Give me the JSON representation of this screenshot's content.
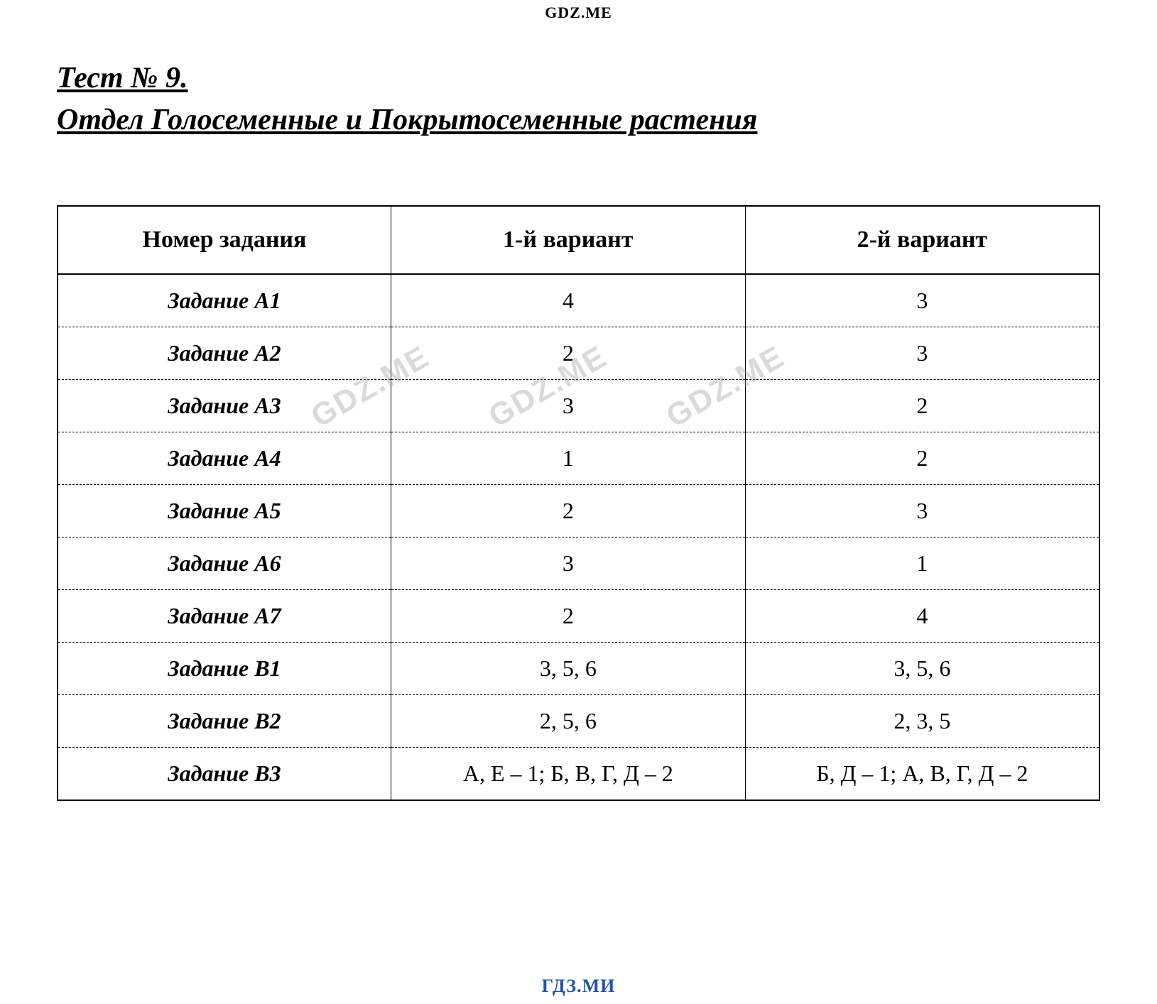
{
  "watermarks": {
    "top": "GDZ.ME",
    "bottom": "ГДЗ.МИ",
    "diagonal": "GDZ.ME"
  },
  "heading": {
    "line1": "Тест № 9.",
    "line2": "Отдел Голосеменные и Покрытосеменные растения"
  },
  "table": {
    "columns": [
      "Номер задания",
      "1-й вариант",
      "2-й вариант"
    ],
    "column_widths": [
      "32%",
      "34%",
      "34%"
    ],
    "header_fontsize": 34,
    "cell_fontsize": 32,
    "border_color": "#000000",
    "rows": [
      {
        "task": "Задание А1",
        "v1": "4",
        "v2": "3"
      },
      {
        "task": "Задание А2",
        "v1": "2",
        "v2": "3"
      },
      {
        "task": "Задание А3",
        "v1": "3",
        "v2": "2"
      },
      {
        "task": "Задание А4",
        "v1": "1",
        "v2": "2"
      },
      {
        "task": "Задание А5",
        "v1": "2",
        "v2": "3"
      },
      {
        "task": "Задание А6",
        "v1": "3",
        "v2": "1"
      },
      {
        "task": "Задание А7",
        "v1": "2",
        "v2": "4"
      },
      {
        "task": "Задание В1",
        "v1": "3, 5, 6",
        "v2": "3, 5, 6"
      },
      {
        "task": "Задание В2",
        "v1": "2, 5, 6",
        "v2": "2, 3, 5"
      },
      {
        "task": "Задание В3",
        "v1": "А, Е – 1; Б, В, Г, Д – 2",
        "v2": "Б, Д – 1; А, В, Г, Д – 2"
      }
    ]
  },
  "colors": {
    "background": "#ffffff",
    "text": "#000000",
    "bottom_watermark": "#2255aa",
    "diagonal_watermark": "rgba(150,150,150,0.35)"
  }
}
